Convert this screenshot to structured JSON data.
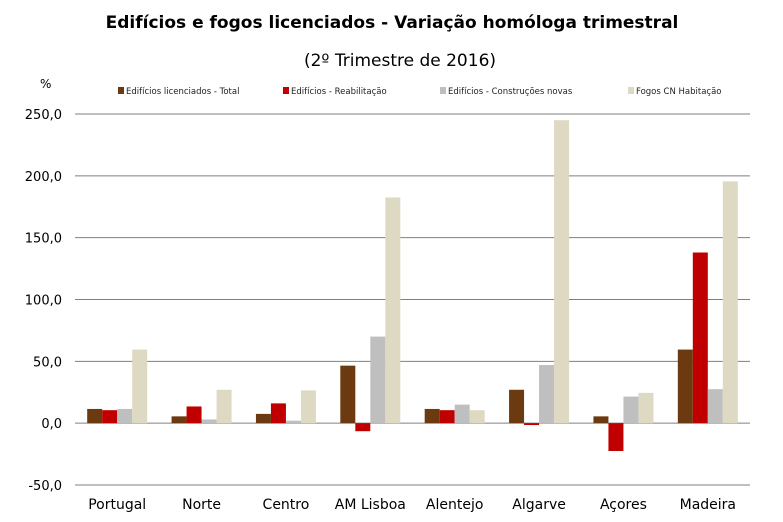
{
  "chart_data": {
    "type": "bar",
    "title": "Edifícios e fogos licenciados - Variação homóloga trimestral",
    "subtitle": "(2º Trimestre de 2016)",
    "ylabel": "%",
    "xlabel": "",
    "ylim": [
      -50,
      250
    ],
    "yticks": [
      "-50,0",
      "0,0",
      "50,0",
      "100,0",
      "150,0",
      "200,0",
      "250,0"
    ],
    "ytick_values": [
      -50,
      0,
      50,
      100,
      150,
      200,
      250
    ],
    "grid": true,
    "legend_position": "top",
    "categories": [
      "Portugal",
      "Norte",
      "Centro",
      "AM Lisboa",
      "Alentejo",
      "Algarve",
      "Açores",
      "Madeira"
    ],
    "series": [
      {
        "name": "Edifícios licenciados - Total",
        "color": "#6b3a10",
        "values": [
          11.5,
          5.5,
          7.5,
          46.5,
          11.5,
          27.0,
          5.5,
          59.5
        ]
      },
      {
        "name": "Edifícios - Reabilitação",
        "color": "#c00000",
        "values": [
          10.5,
          13.5,
          16.0,
          -6.5,
          10.5,
          -1.5,
          -22.5,
          138.0
        ]
      },
      {
        "name": "Edifícios - Construções novas",
        "color": "#bfbfbf",
        "values": [
          11.5,
          3.0,
          2.0,
          70.0,
          15.0,
          47.0,
          21.5,
          27.5
        ]
      },
      {
        "name": "Fogos CN Habitação",
        "color": "#ddd9c3",
        "values": [
          59.5,
          27.0,
          26.5,
          182.5,
          10.5,
          245.0,
          24.5,
          195.5
        ]
      }
    ]
  }
}
